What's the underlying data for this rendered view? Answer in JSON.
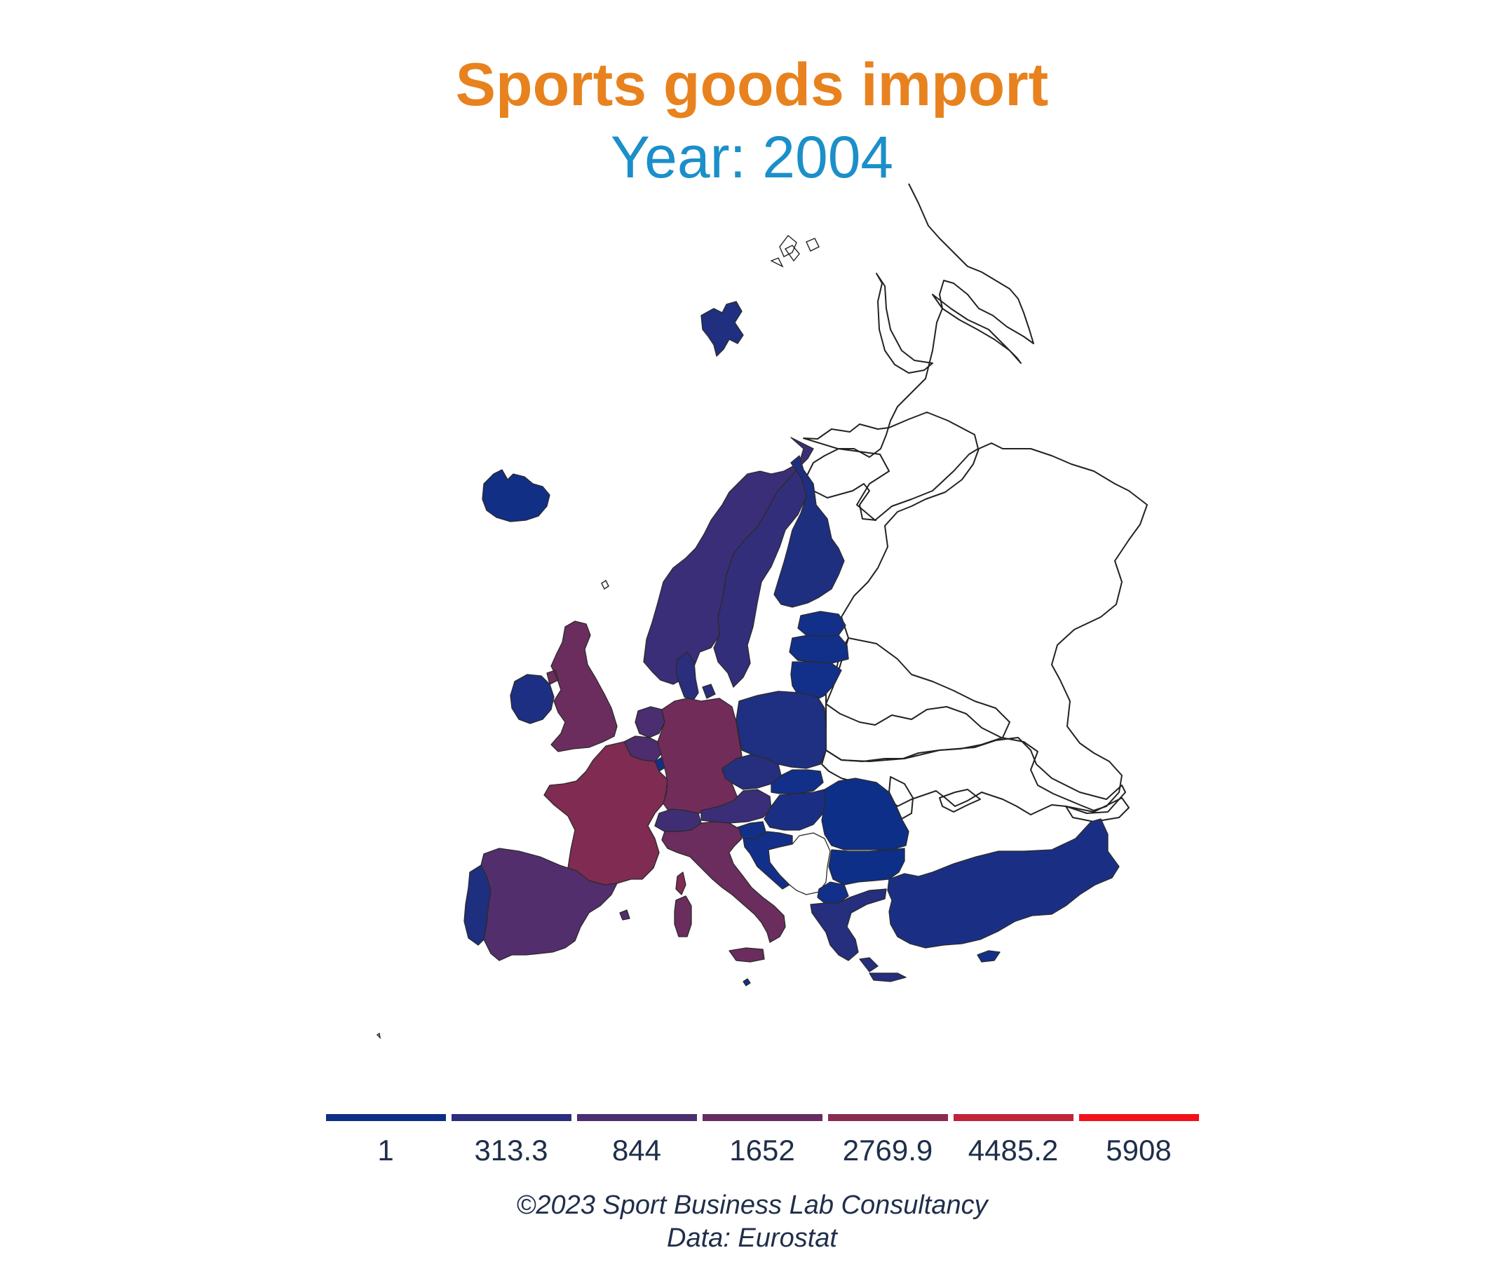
{
  "title": "Sports goods import",
  "subtitle": "Year: 2004",
  "colors": {
    "title": "#E8821E",
    "subtitle": "#1B8FC9",
    "text": "#1f2e4a",
    "low": "#0E2F87",
    "high": "#F2101A"
  },
  "legend": {
    "breaks": [
      "1",
      "313.3",
      "844",
      "1652",
      "2769.9",
      "4485.2",
      "5908"
    ],
    "colors": [
      "#0E2F87",
      "#2A2E7D",
      "#4A2E70",
      "#662D62",
      "#8A2B52",
      "#C0233A",
      "#F2101A"
    ]
  },
  "map_data": {
    "type": "choropleth",
    "region": "Europe",
    "countries": [
      {
        "name": "Iceland",
        "color": "#102F85"
      },
      {
        "name": "Ireland",
        "color": "#1D2F82"
      },
      {
        "name": "United Kingdom",
        "color": "#6B2D5E"
      },
      {
        "name": "Norway",
        "color": "#3B2E78"
      },
      {
        "name": "Sweden",
        "color": "#322E7A"
      },
      {
        "name": "Finland",
        "color": "#1E2F80"
      },
      {
        "name": "Denmark",
        "color": "#2A2E7D"
      },
      {
        "name": "Estonia",
        "color": "#12308A"
      },
      {
        "name": "Latvia",
        "color": "#12308A"
      },
      {
        "name": "Lithuania",
        "color": "#12308A"
      },
      {
        "name": "Netherlands",
        "color": "#4A2E70"
      },
      {
        "name": "Belgium",
        "color": "#4E2D6E"
      },
      {
        "name": "Luxembourg",
        "color": "#12308A"
      },
      {
        "name": "Germany",
        "color": "#722C5A"
      },
      {
        "name": "France",
        "color": "#7F2B52"
      },
      {
        "name": "Spain",
        "color": "#532E6C"
      },
      {
        "name": "Portugal",
        "color": "#1E2F80"
      },
      {
        "name": "Switzerland",
        "color": "#3F2E74"
      },
      {
        "name": "Austria",
        "color": "#3A2E78"
      },
      {
        "name": "Italy",
        "color": "#6A2D5E"
      },
      {
        "name": "Poland",
        "color": "#1F2F82"
      },
      {
        "name": "Czechia",
        "color": "#252F7E"
      },
      {
        "name": "Slovakia",
        "color": "#12308A"
      },
      {
        "name": "Hungary",
        "color": "#1A2F84"
      },
      {
        "name": "Slovenia",
        "color": "#12308A"
      },
      {
        "name": "Croatia",
        "color": "#12308A"
      },
      {
        "name": "Romania",
        "color": "#0E2F87"
      },
      {
        "name": "Bulgaria",
        "color": "#0E2F87"
      },
      {
        "name": "Serbia",
        "color": "#ffffff"
      },
      {
        "name": "North Macedonia",
        "color": "#12308A"
      },
      {
        "name": "Greece",
        "color": "#252F7E"
      },
      {
        "name": "Turkey",
        "color": "#1A2F84"
      },
      {
        "name": "Cyprus",
        "color": "#12308A"
      },
      {
        "name": "Malta",
        "color": "#12308A"
      },
      {
        "name": "Svalbard",
        "color": "#202F80"
      }
    ]
  },
  "caption": {
    "line1": "©2023 Sport Business Lab Consultancy",
    "line2": "Data: Eurostat"
  }
}
